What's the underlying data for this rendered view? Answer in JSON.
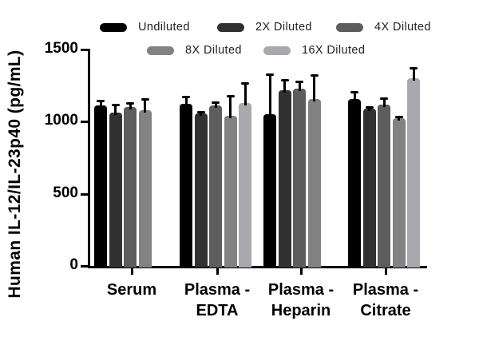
{
  "chart_data": {
    "type": "bar",
    "title": "",
    "ylabel": "Human IL-12/IL-23p40 (pg/mL)",
    "xlabel": "",
    "ylim": [
      0,
      1500
    ],
    "yticks": [
      0,
      500,
      1000,
      1500
    ],
    "grid": false,
    "legend_position": "top",
    "error_bars": "plus_direction_black",
    "categories": [
      "Serum",
      "Plasma - EDTA",
      "Plasma - Heparin",
      "Plasma - Citrate"
    ],
    "x_tick_lines": [
      [
        "Serum"
      ],
      [
        "Plasma -",
        "EDTA"
      ],
      [
        "Plasma -",
        "Heparin"
      ],
      [
        "Plasma -",
        "Citrate"
      ]
    ],
    "series": [
      {
        "name": "Undiluted",
        "color": "#000000",
        "values": [
          1110,
          1125,
          1050,
          1155
        ],
        "errors_plus": [
          35,
          50,
          280,
          50
        ]
      },
      {
        "name": "2X Diluted",
        "color": "#313131",
        "values": [
          1065,
          1055,
          1220,
          1090
        ],
        "errors_plus": [
          55,
          12,
          70,
          12
        ]
      },
      {
        "name": "4X Diluted",
        "color": "#5d5d5d",
        "values": [
          1100,
          1110,
          1230,
          1120
        ],
        "errors_plus": [
          30,
          25,
          50,
          45
        ]
      },
      {
        "name": "8X Diluted",
        "color": "#828282",
        "values": [
          1080,
          1040,
          1155,
          1025
        ],
        "errors_plus": [
          75,
          140,
          170,
          12
        ]
      },
      {
        "name": "16X Diluted",
        "color": "#a9a9ad",
        "values": [
          null,
          1130,
          null,
          1300
        ],
        "errors_plus": [
          null,
          140,
          null,
          70
        ]
      }
    ]
  }
}
